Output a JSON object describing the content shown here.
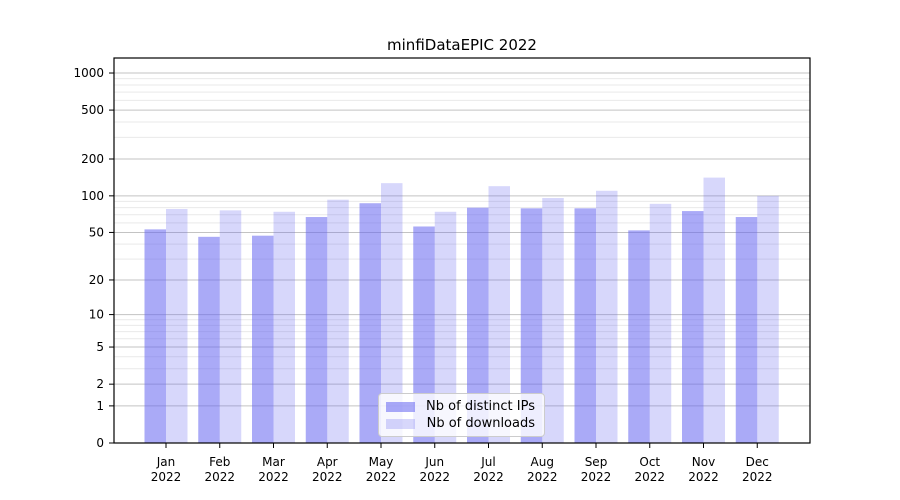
{
  "chart_data": {
    "type": "bar",
    "title": "minfiDataEPIC 2022",
    "categories": [
      "Jan",
      "Feb",
      "Mar",
      "Apr",
      "May",
      "Jun",
      "Jul",
      "Aug",
      "Sep",
      "Oct",
      "Nov",
      "Dec"
    ],
    "x_tick_year": "2022",
    "series": [
      {
        "name": "Nb of distinct IPs",
        "color": "rgba(100,100,240,0.55)",
        "values": [
          53,
          46,
          47,
          67,
          87,
          56,
          80,
          79,
          79,
          52,
          75,
          67
        ]
      },
      {
        "name": "Nb of downloads",
        "color": "rgba(100,100,240,0.26)",
        "values": [
          78,
          76,
          74,
          93,
          127,
          74,
          120,
          96,
          110,
          86,
          141,
          100
        ]
      }
    ],
    "yscale": "log1p",
    "ylim": [
      0,
      1324
    ],
    "y_ticks": [
      0,
      1,
      2,
      5,
      10,
      20,
      50,
      100,
      200,
      500,
      1000
    ],
    "y_minor_gridlines": [
      3,
      4,
      6,
      7,
      8,
      9,
      30,
      40,
      60,
      70,
      80,
      90,
      300,
      400,
      600,
      700,
      800,
      900
    ],
    "grid": true,
    "legend_position": "lower center",
    "colors": {
      "axis": "#000000",
      "major_grid": "#c3c3c3",
      "minor_grid": "#e9e9e9",
      "tick_label": "#000000"
    }
  }
}
